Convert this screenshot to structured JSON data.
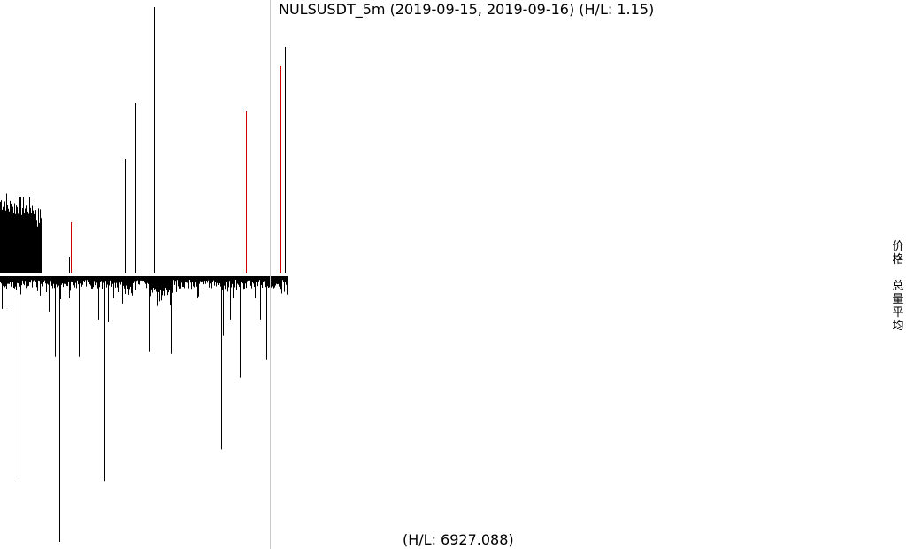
{
  "chart_data": {
    "type": "bar",
    "title": "NULSUSDT_5m (2019-09-15, 2019-09-16) (H/L: 1.15)",
    "footer": "(H/L: 6927.088)",
    "side_labels": [
      "价格",
      "总量平均"
    ],
    "colors": {
      "up": "#000000",
      "highlight": "#cc0000",
      "down": "#000000",
      "divider": "#cccccc"
    },
    "price_panel": {
      "ylim": [
        0,
        1
      ],
      "dense_block": {
        "count": 47,
        "base": 0.24
      },
      "spikes": [
        {
          "i": 78,
          "v": 0.06,
          "color": "black"
        },
        {
          "i": 80,
          "v": 0.19,
          "color": "red"
        },
        {
          "i": 141,
          "v": 0.43,
          "color": "black"
        },
        {
          "i": 153,
          "v": 0.64,
          "color": "black"
        },
        {
          "i": 174,
          "v": 1.0,
          "color": "black"
        },
        {
          "i": 278,
          "v": 0.61,
          "color": "red"
        },
        {
          "i": 305,
          "v": 0.71,
          "color": "black"
        },
        {
          "i": 317,
          "v": 0.78,
          "color": "red"
        },
        {
          "i": 322,
          "v": 0.85,
          "color": "black"
        }
      ]
    },
    "volume_panel": {
      "ylim": [
        0,
        1
      ],
      "bar_count": 325,
      "spikes": [
        {
          "i": 2,
          "v": 0.12
        },
        {
          "i": 13,
          "v": 0.12
        },
        {
          "i": 21,
          "v": 0.77
        },
        {
          "i": 55,
          "v": 0.13
        },
        {
          "i": 62,
          "v": 0.3
        },
        {
          "i": 67,
          "v": 1.0
        },
        {
          "i": 89,
          "v": 0.3
        },
        {
          "i": 111,
          "v": 0.16
        },
        {
          "i": 118,
          "v": 0.77
        },
        {
          "i": 122,
          "v": 0.17
        },
        {
          "i": 138,
          "v": 0.1
        },
        {
          "i": 168,
          "v": 0.28
        },
        {
          "i": 193,
          "v": 0.29
        },
        {
          "i": 250,
          "v": 0.65
        },
        {
          "i": 252,
          "v": 0.22
        },
        {
          "i": 260,
          "v": 0.16
        },
        {
          "i": 271,
          "v": 0.38
        },
        {
          "i": 294,
          "v": 0.16
        },
        {
          "i": 301,
          "v": 0.31
        }
      ]
    }
  }
}
